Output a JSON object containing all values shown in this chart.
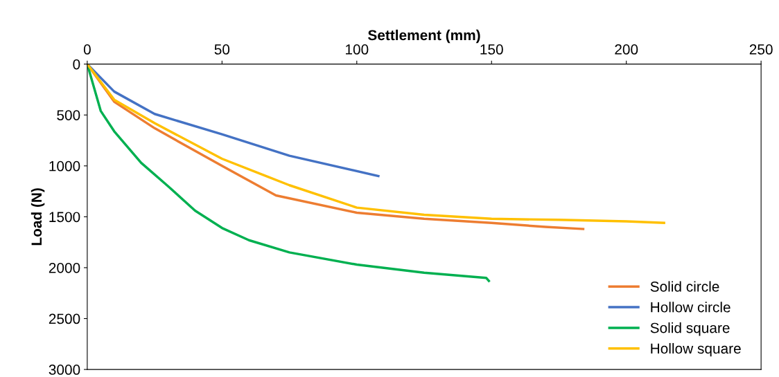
{
  "chart_data": {
    "type": "line",
    "xlabel": "Settlement (mm)",
    "ylabel": "Load (N)",
    "xlim": [
      0,
      250
    ],
    "xticks": [
      0,
      50,
      100,
      150,
      200,
      250
    ],
    "ylim": [
      3000,
      0
    ],
    "yticks": [
      0,
      500,
      1000,
      1500,
      2000,
      2500,
      3000
    ],
    "grid": false,
    "legend": "bottom right",
    "marker": "none",
    "line_style": "solid",
    "series": [
      {
        "name": "Solid circle",
        "color": "#ed7d31",
        "x": [
          0,
          10,
          25,
          50,
          70,
          100,
          125,
          150,
          170,
          184
        ],
        "values": [
          0,
          370,
          630,
          1000,
          1290,
          1460,
          1520,
          1560,
          1600,
          1620
        ]
      },
      {
        "name": "Hollow circle",
        "color": "#4472c4",
        "x": [
          0,
          10,
          25,
          50,
          75,
          108
        ],
        "values": [
          0,
          270,
          490,
          690,
          900,
          1100
        ]
      },
      {
        "name": "Solid square",
        "color": "#00b050",
        "x": [
          0,
          5,
          10,
          20,
          30,
          40,
          50,
          60,
          75,
          100,
          125,
          148,
          149
        ],
        "values": [
          0,
          460,
          660,
          970,
          1200,
          1440,
          1610,
          1730,
          1850,
          1970,
          2050,
          2100,
          2130
        ]
      },
      {
        "name": "Hollow square",
        "color": "#ffc000",
        "x": [
          0,
          10,
          25,
          50,
          75,
          100,
          125,
          150,
          175,
          200,
          214
        ],
        "values": [
          0,
          350,
          580,
          930,
          1190,
          1410,
          1480,
          1520,
          1530,
          1545,
          1560
        ]
      }
    ]
  }
}
